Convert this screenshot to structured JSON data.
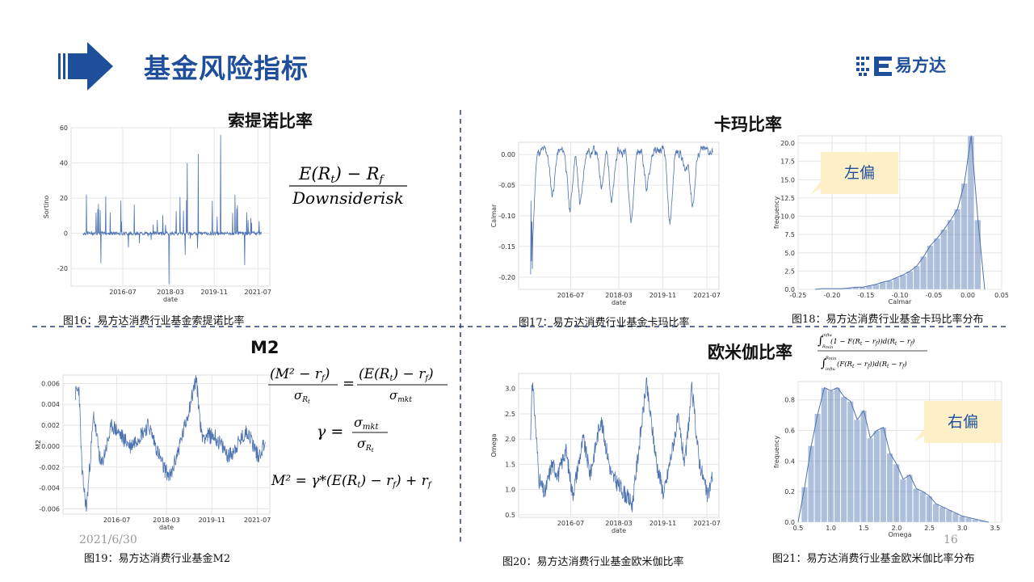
{
  "title": "基金风险指标",
  "logo": {
    "text": "易方达"
  },
  "footer": {
    "date": "2021/6/30",
    "page": "16"
  },
  "sections": {
    "sortino": {
      "title": "索提诺比率",
      "caption": "图16：易方达消费行业基金索提诺比率"
    },
    "calmar": {
      "title": "卡玛比率",
      "caption17": "图17：易方达消费行业基金卡玛比率",
      "caption18": "图18：易方达消费行业基金卡玛比率分布",
      "callout": "左偏"
    },
    "m2": {
      "title": "M2",
      "caption": "图19：易方达消费行业基金M2"
    },
    "omega": {
      "title": "欧米伽比率",
      "caption20": "图20：易方达消费行业基金欧米伽比率",
      "caption21": "图21：易方达消费行业基金欧米伽比率分布",
      "callout": "右偏"
    }
  },
  "formulas": {
    "sortino_num": "E(R",
    "sortino_num2": ") − R",
    "sortino_den": "Downsiderisk",
    "m2_l1": "(M² − r",
    "m2_l1b": ") = (E(R",
    "m2_l1c": ") − r",
    "m2_l1d": ")",
    "gamma": "γ =",
    "m2_def": "M² = γ*(E(R",
    "m2_def2": ") − r",
    "m2_def3": ") + r",
    "omega_num": "(1 − F(R",
    "omega_num2": " − r",
    "omega_num3": "))d(R",
    "omega_den": "(F(R",
    "omega_lim": "inftu"
  },
  "chart_data": [
    {
      "type": "line",
      "id": "sortino",
      "xlabel": "date",
      "ylabel": "Sortino",
      "xticks": [
        "2016-07",
        "2018-03",
        "2019-11",
        "2021-07"
      ],
      "yticks": [
        60,
        40,
        20,
        0,
        -20
      ],
      "ylim": [
        -30,
        60
      ],
      "grid": true,
      "color": "#4c72b0"
    },
    {
      "type": "line",
      "id": "calmar",
      "xlabel": "date",
      "ylabel": "Calmar",
      "xticks": [
        "2016-07",
        "2018-03",
        "2019-11",
        "2021-07"
      ],
      "yticks": [
        "0.00",
        "-0.05",
        "-0.10",
        "-0.15",
        "-0.20"
      ],
      "ylim": [
        -0.22,
        0.02
      ],
      "grid": true,
      "color": "#4c72b0"
    },
    {
      "type": "bar",
      "id": "calmar_hist",
      "xlabel": "Calmar",
      "ylabel": "frequency",
      "xticks": [
        "-0.25",
        "-0.20",
        "-0.15",
        "-0.10",
        "-0.05",
        "0.00",
        "0.05"
      ],
      "yticks": [
        "0.0",
        "2.5",
        "5.0",
        "7.5",
        "10.0",
        "12.5",
        "15.0",
        "17.5",
        "20.0"
      ],
      "xlim": [
        -0.25,
        0.05
      ],
      "ylim": [
        0,
        21
      ],
      "bins": [
        -0.215,
        -0.205,
        -0.195,
        -0.185,
        -0.175,
        -0.165,
        -0.155,
        -0.145,
        -0.135,
        -0.125,
        -0.115,
        -0.105,
        -0.095,
        -0.085,
        -0.075,
        -0.065,
        -0.055,
        -0.045,
        -0.035,
        -0.025,
        -0.015,
        -0.005,
        0.005,
        0.015
      ],
      "values": [
        0.1,
        0.1,
        0.1,
        0.1,
        0.2,
        0.3,
        0.3,
        0.5,
        0.7,
        1.0,
        1.2,
        1.6,
        2.0,
        2.5,
        3.2,
        4.5,
        6.0,
        7.0,
        8.2,
        9.5,
        11.0,
        14.5,
        21.0,
        9.5
      ],
      "color": "#4c72b0"
    },
    {
      "type": "line",
      "id": "m2",
      "xlabel": "date",
      "ylabel": "M2",
      "xticks": [
        "2016-07",
        "2018-03",
        "2019-11",
        "2021-07"
      ],
      "yticks": [
        "0.006",
        "0.004",
        "0.002",
        "0.000",
        "-0.002",
        "-0.004",
        "-0.006"
      ],
      "ylim": [
        -0.0065,
        0.0068
      ],
      "grid": true,
      "color": "#4c72b0"
    },
    {
      "type": "line",
      "id": "omega",
      "xlabel": "date",
      "ylabel": "Omega",
      "xticks": [
        "2016-07",
        "2018-03",
        "2019-11",
        "2021-07"
      ],
      "yticks": [
        "3.0",
        "2.5",
        "2.0",
        "1.5",
        "1.0",
        "0.5"
      ],
      "ylim": [
        0.45,
        3.3
      ],
      "grid": true,
      "color": "#4c72b0"
    },
    {
      "type": "bar",
      "id": "omega_hist",
      "xlabel": "Omega",
      "ylabel": "frequency",
      "xticks": [
        "0.5",
        "1.0",
        "1.5",
        "2.0",
        "2.5",
        "3.0",
        "3.5"
      ],
      "yticks": [
        "0.0",
        "0.2",
        "0.4",
        "0.6",
        "0.8"
      ],
      "xlim": [
        0.5,
        3.6
      ],
      "ylim": [
        0,
        0.92
      ],
      "bins": [
        0.6,
        0.7,
        0.8,
        0.9,
        1.0,
        1.1,
        1.2,
        1.3,
        1.4,
        1.5,
        1.6,
        1.7,
        1.8,
        1.9,
        2.0,
        2.1,
        2.2,
        2.3,
        2.4,
        2.5,
        2.6,
        2.7,
        2.8,
        2.9,
        3.0,
        3.1,
        3.2,
        3.3
      ],
      "values": [
        0.23,
        0.5,
        0.71,
        0.88,
        0.86,
        0.88,
        0.82,
        0.79,
        0.67,
        0.73,
        0.55,
        0.6,
        0.62,
        0.45,
        0.38,
        0.28,
        0.31,
        0.22,
        0.2,
        0.17,
        0.12,
        0.1,
        0.08,
        0.06,
        0.04,
        0.03,
        0.02,
        0.01
      ],
      "color": "#4c72b0"
    }
  ]
}
